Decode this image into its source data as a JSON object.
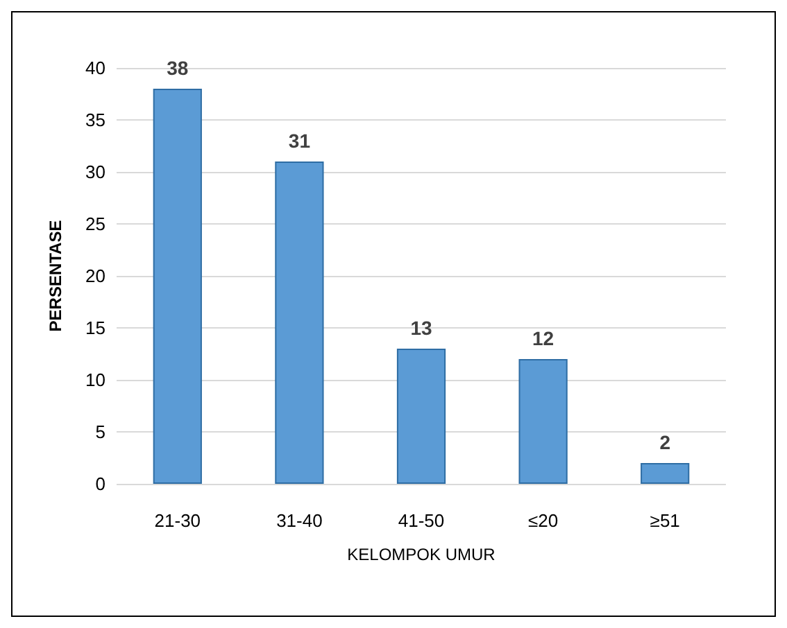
{
  "chart_data": {
    "type": "bar",
    "xlabel": "KELOMPOK UMUR",
    "ylabel": "PERSENTASE",
    "categories": [
      "21-30",
      "31-40",
      "41-50",
      "≤20",
      "≥51"
    ],
    "values": [
      38,
      31,
      13,
      12,
      2
    ],
    "color": "#5b9bd5",
    "ylim": [
      0,
      40
    ],
    "yticks": [
      0,
      5,
      10,
      15,
      20,
      25,
      30,
      35,
      40
    ],
    "grid": "y",
    "data_labels": true
  }
}
